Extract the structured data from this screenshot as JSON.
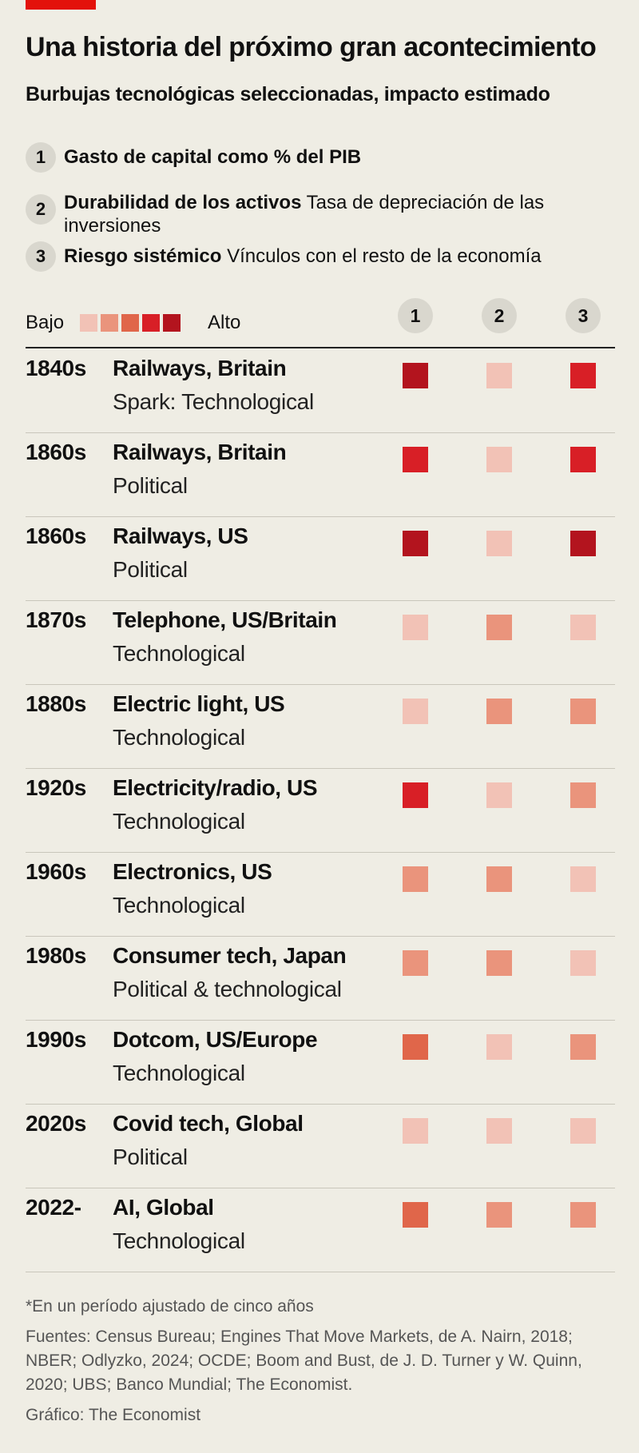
{
  "header": {
    "title": "Una historia del próximo gran acontecimiento",
    "subtitle": "Burbujas tecnológicas seleccionadas, impacto estimado"
  },
  "key": [
    {
      "num": "1",
      "bold": "Gasto de capital como % del PIB",
      "rest": ""
    },
    {
      "num": "2",
      "bold": "Durabilidad de los activos",
      "rest": " Tasa de depreciación de las inversiones"
    },
    {
      "num": "3",
      "bold": "Riesgo sistémico",
      "rest": " Vínculos con el resto de la economía"
    }
  ],
  "scale": {
    "low_label": "Bajo",
    "high_label": "Alto",
    "colors": [
      "#F2C2B6",
      "#EA947C",
      "#E0664A",
      "#D81F26",
      "#B3141E"
    ]
  },
  "chart_data": {
    "type": "table",
    "columns": [
      "1",
      "2",
      "3"
    ],
    "scale_levels": 5,
    "rows": [
      {
        "period": "1840s",
        "bubble": "Railways, Britain",
        "spark": "Spark: Technological",
        "levels": [
          5,
          1,
          4
        ]
      },
      {
        "period": "1860s",
        "bubble": "Railways, Britain",
        "spark": "Political",
        "levels": [
          4,
          1,
          4
        ]
      },
      {
        "period": "1860s",
        "bubble": "Railways, US",
        "spark": "Political",
        "levels": [
          5,
          1,
          5
        ]
      },
      {
        "period": "1870s",
        "bubble": "Telephone, US/Britain",
        "spark": "Technological",
        "levels": [
          1,
          2,
          1
        ]
      },
      {
        "period": "1880s",
        "bubble": "Electric light, US",
        "spark": "Technological",
        "levels": [
          1,
          2,
          2
        ]
      },
      {
        "period": "1920s",
        "bubble": "Electricity/radio, US",
        "spark": "Technological",
        "levels": [
          4,
          1,
          2
        ]
      },
      {
        "period": "1960s",
        "bubble": "Electronics, US",
        "spark": "Technological",
        "levels": [
          2,
          2,
          1
        ]
      },
      {
        "period": "1980s",
        "bubble": "Consumer tech, Japan",
        "spark": "Political & technological",
        "levels": [
          2,
          2,
          1
        ]
      },
      {
        "period": "1990s",
        "bubble": "Dotcom, US/Europe",
        "spark": "Technological",
        "levels": [
          3,
          1,
          2
        ]
      },
      {
        "period": "2020s",
        "bubble": "Covid tech, Global",
        "spark": "Political",
        "levels": [
          1,
          1,
          1
        ]
      },
      {
        "period": "2022-",
        "bubble": "AI, Global",
        "spark": "Technological",
        "levels": [
          3,
          2,
          2
        ]
      }
    ]
  },
  "footnotes": {
    "note": "*En un período ajustado de cinco años",
    "sources": "Fuentes: Census Bureau; Engines That Move Markets, de A. Nairn, 2018; NBER; Odlyzko, 2024; OCDE; Boom and Bust, de J. D. Turner y W. Quinn, 2020; UBS; Banco Mundial; The Economist.",
    "credit": "Gráfico: The Economist"
  }
}
